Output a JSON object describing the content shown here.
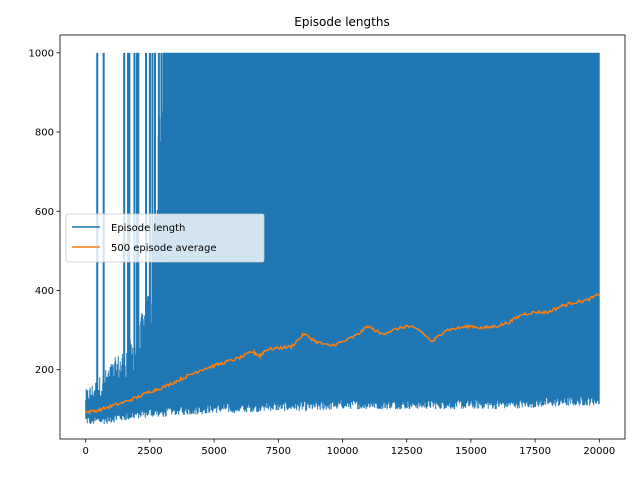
{
  "chart_data": {
    "type": "line",
    "title": "Episode lengths",
    "xlabel": "",
    "ylabel": "",
    "xlim": [
      -1000,
      21000
    ],
    "ylim": [
      25,
      1045
    ],
    "xticks": [
      0,
      2500,
      5000,
      7500,
      10000,
      12500,
      15000,
      17500,
      20000
    ],
    "xtick_labels": [
      "0",
      "2500",
      "5000",
      "7500",
      "10000",
      "12500",
      "15000",
      "17500",
      "20000"
    ],
    "yticks": [
      200,
      400,
      600,
      800,
      1000
    ],
    "ytick_labels": [
      "200",
      "400",
      "600",
      "800",
      "1000"
    ],
    "grid": false,
    "legend": {
      "position": "center-left",
      "entries": [
        "Episode length",
        "500 episode average"
      ]
    },
    "series": [
      {
        "name": "Episode length",
        "color": "#1f77b4",
        "approx_envelope": {
          "x": [
            0,
            500,
            1000,
            1500,
            2000,
            2500,
            3000,
            3500,
            4000,
            5000,
            6000,
            7000,
            8000,
            9000,
            10000,
            12000,
            14000,
            16000,
            18000,
            20000
          ],
          "lower": [
            60,
            60,
            65,
            70,
            75,
            80,
            80,
            85,
            85,
            90,
            90,
            95,
            95,
            95,
            100,
            100,
            100,
            100,
            105,
            110
          ],
          "upper_typical": [
            150,
            180,
            220,
            260,
            300,
            420,
            1000,
            1000,
            1000,
            1000,
            1000,
            1000,
            1000,
            1000,
            1000,
            1000,
            1000,
            1000,
            1000,
            1000
          ]
        },
        "spikes_to_1000_x": [
          450,
          700,
          1500,
          1650,
          1700,
          1900,
          2000,
          2050,
          2350,
          2500,
          2600,
          2700,
          2850,
          2950,
          3100
        ]
      },
      {
        "name": "500 episode average",
        "color": "#ff7f0e",
        "x": [
          0,
          500,
          1000,
          1500,
          2000,
          2500,
          3000,
          3500,
          4000,
          4500,
          5000,
          5500,
          6000,
          6500,
          6800,
          7000,
          7500,
          8000,
          8500,
          9000,
          9500,
          10000,
          10500,
          11000,
          11500,
          12000,
          12500,
          13000,
          13500,
          14000,
          14500,
          15000,
          15500,
          16000,
          16500,
          17000,
          17500,
          18000,
          18500,
          19000,
          19500,
          20000
        ],
        "values": [
          92,
          98,
          108,
          118,
          130,
          145,
          155,
          170,
          185,
          200,
          210,
          220,
          230,
          245,
          235,
          250,
          255,
          258,
          290,
          270,
          260,
          270,
          285,
          310,
          290,
          300,
          310,
          300,
          270,
          300,
          305,
          310,
          305,
          310,
          320,
          340,
          345,
          345,
          360,
          370,
          375,
          390
        ]
      }
    ]
  }
}
